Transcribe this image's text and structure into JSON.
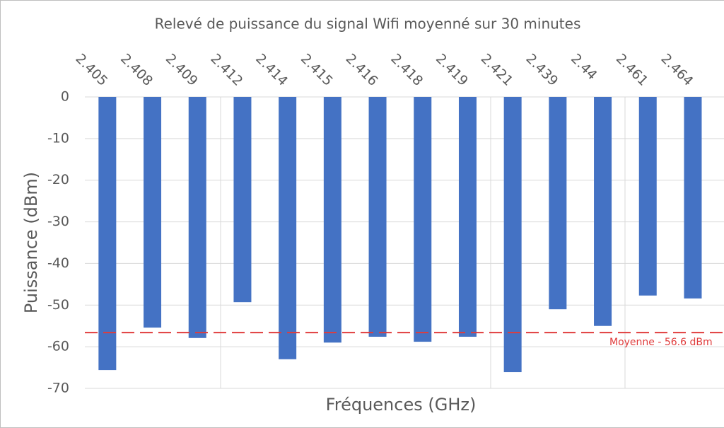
{
  "chart_data": {
    "type": "bar",
    "title": "Relevé de puissance du signal Wifi moyenné sur 30 minutes",
    "x_label": "Fréquences (GHz)",
    "y_label": "Puissance (dBm)",
    "categories": [
      "2.405",
      "2.408",
      "2.409",
      "2.412",
      "2.414",
      "2.415",
      "2.416",
      "2.418",
      "2.419",
      "2.421",
      "2.439",
      "2.44",
      "2.461",
      "2.464"
    ],
    "values": [
      -65.6,
      -55.4,
      -57.9,
      -49.3,
      -63.0,
      -59.0,
      -57.6,
      -58.8,
      -57.6,
      -66.1,
      -51.0,
      -55.0,
      -47.7,
      -48.4
    ],
    "color": "#4472c4",
    "ylim": [
      -70,
      0
    ],
    "yticks": [
      0,
      -10,
      -20,
      -30,
      -40,
      -50,
      -60,
      -70
    ],
    "grid": true,
    "mean_line": {
      "value": -56.6,
      "label": "Moyenne - 56.6 dBm",
      "color": "#e03c3c"
    }
  }
}
